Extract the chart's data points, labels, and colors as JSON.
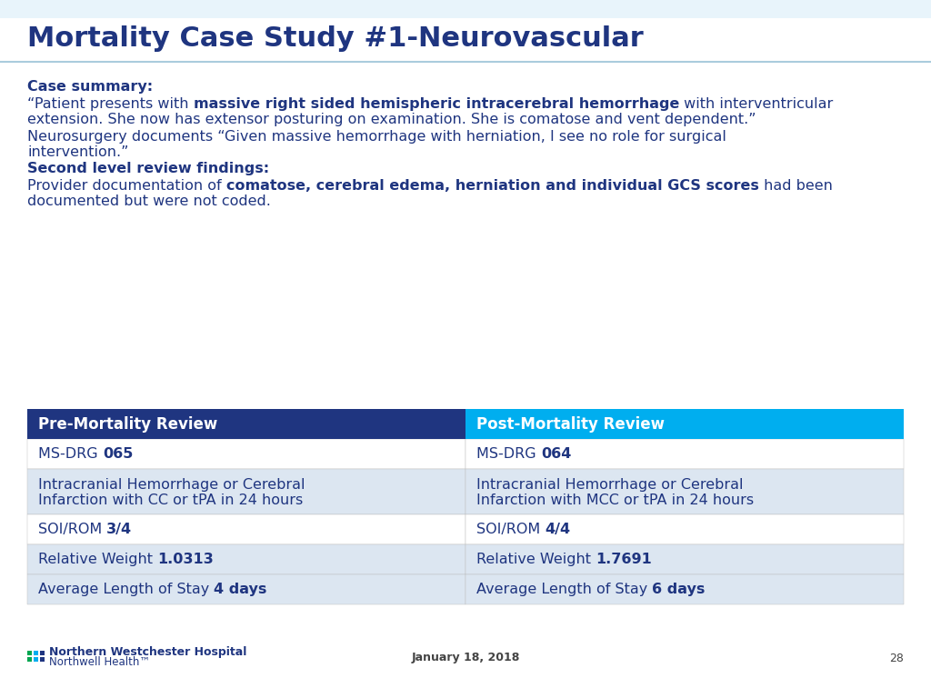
{
  "title": "Mortality Case Study #1-Neurovascular",
  "title_color": "#1F3580",
  "title_fontsize": 22,
  "background_color": "#FFFFFF",
  "body_text_color": "#1F3580",
  "body_fontsize": 11.5,
  "case_summary_label": "Case summary:",
  "second_review_label": "Second level review findings:",
  "table_header_left": "Pre-Mortality Review",
  "table_header_right": "Post-Mortality Review",
  "table_header_left_bg": "#1F3580",
  "table_header_right_bg": "#00AEEF",
  "table_header_text_color": "#FFFFFF",
  "table_row_bg_light": "#DCE6F1",
  "table_row_bg_white": "#FFFFFF",
  "table_text_color": "#1F3580",
  "table_rows": [
    {
      "left_normal": "MS-DRG ",
      "left_bold": "065",
      "right_normal": "MS-DRG ",
      "right_bold": "064",
      "bg": "#FFFFFF"
    },
    {
      "left_normal_line1": "Intracranial Hemorrhage or Cerebral",
      "left_normal_line2": "Infarction with CC or tPA in 24 hours",
      "left_bold": "",
      "right_normal_line1": "Intracranial Hemorrhage or Cerebral",
      "right_normal_line2": "Infarction with MCC or tPA in 24 hours",
      "right_bold": "",
      "bg": "#DCE6F1"
    },
    {
      "left_normal": "SOI/ROM ",
      "left_bold": "3/4",
      "right_normal": "SOI/ROM ",
      "right_bold": "4/4",
      "bg": "#FFFFFF"
    },
    {
      "left_normal": "Relative Weight ",
      "left_bold": "1.0313",
      "right_normal": "Relative Weight ",
      "right_bold": "1.7691",
      "bg": "#DCE6F1"
    },
    {
      "left_normal": "Average Length of Stay ",
      "left_bold": "4 days",
      "right_normal": "Average Length of Stay ",
      "right_bold": "6 days",
      "bg": "#DCE6F1"
    }
  ],
  "footer_hospital": "Northern Westchester Hospital",
  "footer_health": "Northwell Health™",
  "footer_date": "January 18, 2018",
  "footer_page": "28",
  "footer_color": "#1F3580",
  "footer_green": "#00A651",
  "footer_cyan": "#00AEEF"
}
